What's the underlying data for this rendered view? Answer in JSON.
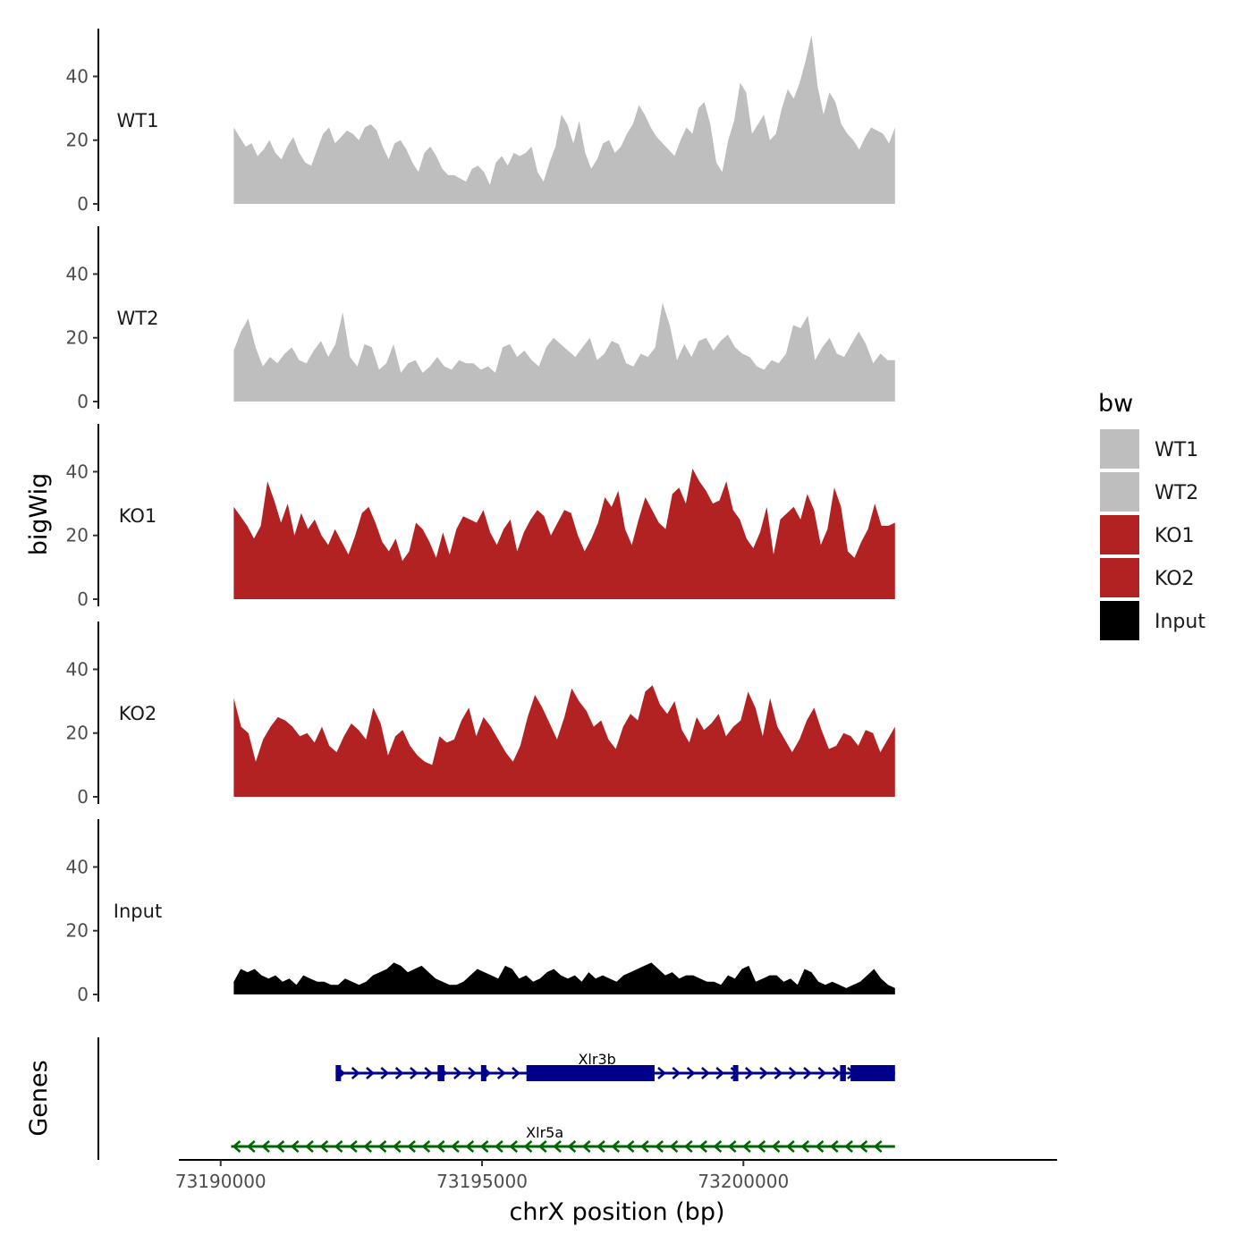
{
  "chart_data": {
    "type": "area",
    "title": "",
    "xlabel": "chrX position (bp)",
    "ylabel": "bigWig",
    "genes_label": "Genes",
    "xlim": [
      73189200,
      73206000
    ],
    "ylim": [
      0,
      55
    ],
    "y_ticks": [
      0,
      20,
      40
    ],
    "x_ticks": [
      73190000,
      73195000,
      73200000
    ],
    "x_tick_labels": [
      "73190000",
      "73195000",
      "73200000"
    ],
    "x_start": 73190250,
    "x_end": 73202900,
    "legend": {
      "title": "bw",
      "items": [
        {
          "label": "WT1",
          "color": "#bebebe"
        },
        {
          "label": "WT2",
          "color": "#bebebe"
        },
        {
          "label": "KO1",
          "color": "#b22222"
        },
        {
          "label": "KO2",
          "color": "#b22222"
        },
        {
          "label": "Input",
          "color": "#000000"
        }
      ]
    },
    "tracks": [
      {
        "label": "WT1",
        "color": "#bebebe",
        "values": [
          24,
          21,
          18,
          19,
          15,
          17,
          20,
          16,
          14,
          18,
          21,
          16,
          13,
          12,
          17,
          22,
          24,
          19,
          21,
          23,
          22,
          20,
          24,
          25,
          23,
          18,
          14,
          19,
          20,
          17,
          13,
          10,
          16,
          18,
          15,
          11,
          9,
          9,
          8,
          7,
          11,
          12,
          10,
          6,
          13,
          15,
          12,
          16,
          15,
          16,
          18,
          10,
          7,
          13,
          18,
          28,
          25,
          19,
          26,
          16,
          11,
          14,
          19,
          20,
          16,
          18,
          22,
          25,
          31,
          28,
          24,
          21,
          19,
          17,
          15,
          20,
          24,
          22,
          30,
          32,
          25,
          13,
          10,
          20,
          26,
          38,
          35,
          22,
          25,
          28,
          20,
          22,
          30,
          36,
          33,
          38,
          45,
          53,
          37,
          28,
          35,
          32,
          25,
          22,
          20,
          17,
          21,
          24,
          23,
          22,
          19,
          24
        ]
      },
      {
        "label": "WT2",
        "color": "#bebebe",
        "values": [
          16,
          22,
          26,
          17,
          11,
          14,
          12,
          15,
          17,
          13,
          12,
          16,
          19,
          14,
          18,
          28,
          14,
          11,
          18,
          17,
          10,
          12,
          18,
          9,
          12,
          13,
          9,
          11,
          14,
          11,
          10,
          13,
          12,
          12,
          10,
          11,
          9,
          17,
          18,
          14,
          16,
          13,
          11,
          17,
          20,
          18,
          16,
          14,
          17,
          20,
          13,
          15,
          19,
          18,
          12,
          11,
          15,
          14,
          17,
          31,
          24,
          13,
          18,
          14,
          19,
          20,
          16,
          19,
          21,
          17,
          15,
          14,
          11,
          10,
          13,
          12,
          15,
          24,
          23,
          27,
          13,
          17,
          20,
          15,
          14,
          18,
          22,
          18,
          12,
          15,
          13,
          13
        ]
      },
      {
        "label": "KO1",
        "color": "#b22222",
        "values": [
          29,
          26,
          23,
          19,
          23,
          37,
          31,
          24,
          30,
          20,
          27,
          22,
          25,
          20,
          17,
          22,
          18,
          14,
          20,
          27,
          29,
          24,
          18,
          15,
          19,
          12,
          15,
          24,
          22,
          18,
          13,
          21,
          14,
          22,
          26,
          25,
          24,
          28,
          21,
          17,
          22,
          25,
          15,
          21,
          25,
          28,
          26,
          20,
          24,
          28,
          27,
          20,
          15,
          19,
          24,
          32,
          29,
          34,
          22,
          17,
          25,
          32,
          28,
          24,
          22,
          33,
          35,
          30,
          41,
          37,
          34,
          30,
          31,
          37,
          28,
          25,
          19,
          16,
          21,
          29,
          14,
          25,
          27,
          29,
          25,
          33,
          28,
          17,
          22,
          35,
          29,
          15,
          13,
          18,
          22,
          30,
          23,
          23,
          24
        ]
      },
      {
        "label": "KO2",
        "color": "#b22222",
        "values": [
          31,
          22,
          20,
          11,
          18,
          22,
          25,
          24,
          22,
          19,
          20,
          17,
          22,
          16,
          14,
          19,
          23,
          21,
          18,
          28,
          23,
          13,
          19,
          21,
          16,
          13,
          11,
          10,
          19,
          17,
          18,
          24,
          28,
          19,
          25,
          22,
          18,
          14,
          11,
          16,
          25,
          32,
          28,
          23,
          18,
          25,
          34,
          30,
          27,
          22,
          24,
          18,
          15,
          22,
          26,
          24,
          33,
          35,
          29,
          26,
          30,
          21,
          17,
          25,
          21,
          23,
          26,
          19,
          22,
          24,
          33,
          28,
          19,
          31,
          22,
          18,
          14,
          18,
          24,
          28,
          21,
          15,
          16,
          20,
          19,
          16,
          21,
          20,
          14,
          18,
          22
        ]
      },
      {
        "label": "Input",
        "color": "#000000",
        "values": [
          4,
          8,
          7,
          8,
          6,
          5,
          6,
          4,
          5,
          3,
          6,
          5,
          4,
          4,
          3,
          3,
          5,
          4,
          3,
          4,
          6,
          7,
          8,
          10,
          9,
          7,
          8,
          9,
          7,
          5,
          4,
          3,
          3,
          4,
          6,
          8,
          7,
          6,
          5,
          9,
          8,
          5,
          6,
          4,
          5,
          7,
          8,
          6,
          5,
          6,
          4,
          7,
          5,
          6,
          5,
          4,
          6,
          7,
          8,
          9,
          10,
          8,
          6,
          7,
          5,
          6,
          6,
          5,
          4,
          4,
          3,
          6,
          5,
          8,
          9,
          4,
          5,
          6,
          6,
          4,
          5,
          3,
          8,
          7,
          4,
          3,
          4,
          3,
          2,
          3,
          4,
          6,
          8,
          5,
          3,
          2
        ]
      }
    ],
    "genes": [
      {
        "name": "Xlr3b",
        "strand": "+",
        "color": "#00008b",
        "start": 73192200,
        "end": 73202900,
        "exons": [
          [
            73192200,
            73192260
          ],
          [
            73194150,
            73194280
          ],
          [
            73194980,
            73195040
          ],
          [
            73195850,
            73198300
          ],
          [
            73199800,
            73199880
          ],
          [
            73201850,
            73201960
          ],
          [
            73202050,
            73202900
          ]
        ]
      },
      {
        "name": "Xlr5a",
        "strand": "-",
        "color": "#006400",
        "start": 73190200,
        "end": 73202900,
        "exons": []
      }
    ]
  }
}
